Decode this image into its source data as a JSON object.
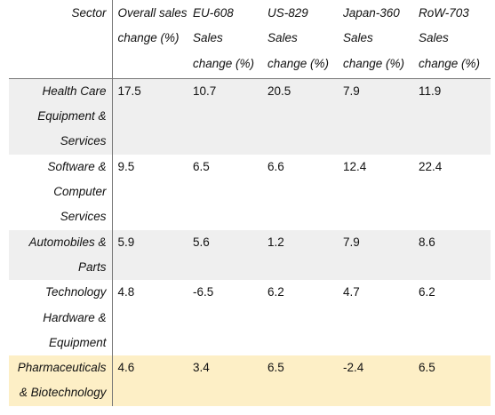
{
  "table": {
    "headers": [
      "Sector",
      "Overall sales change (%)",
      "EU-608 Sales change (%)",
      "US-829 Sales change (%)",
      "Japan-360 Sales change (%)",
      "RoW-703 Sales change (%)"
    ],
    "rows": [
      {
        "sector": "Health Care Equipment & Services",
        "overall": "17.5",
        "eu": "10.7",
        "us": "20.5",
        "japan": "7.9",
        "row": "11.9"
      },
      {
        "sector": "Software & Computer Services",
        "overall": "9.5",
        "eu": "6.5",
        "us": "6.6",
        "japan": "12.4",
        "row": "22.4"
      },
      {
        "sector": "Automobiles & Parts",
        "overall": "5.9",
        "eu": "5.6",
        "us": "1.2",
        "japan": "7.9",
        "row": "8.6"
      },
      {
        "sector": "Technology Hardware & Equipment",
        "overall": "4.8",
        "eu": "-6.5",
        "us": "6.2",
        "japan": "4.7",
        "row": "6.2"
      },
      {
        "sector": "Pharmaceuticals & Biotechnology",
        "overall": "4.6",
        "eu": "3.4",
        "us": "6.5",
        "japan": "-2.4",
        "row": "6.5"
      }
    ]
  },
  "colors": {
    "row_shade": "#efefef",
    "row_highlight": "#fdefc6",
    "rule": "#777777"
  }
}
